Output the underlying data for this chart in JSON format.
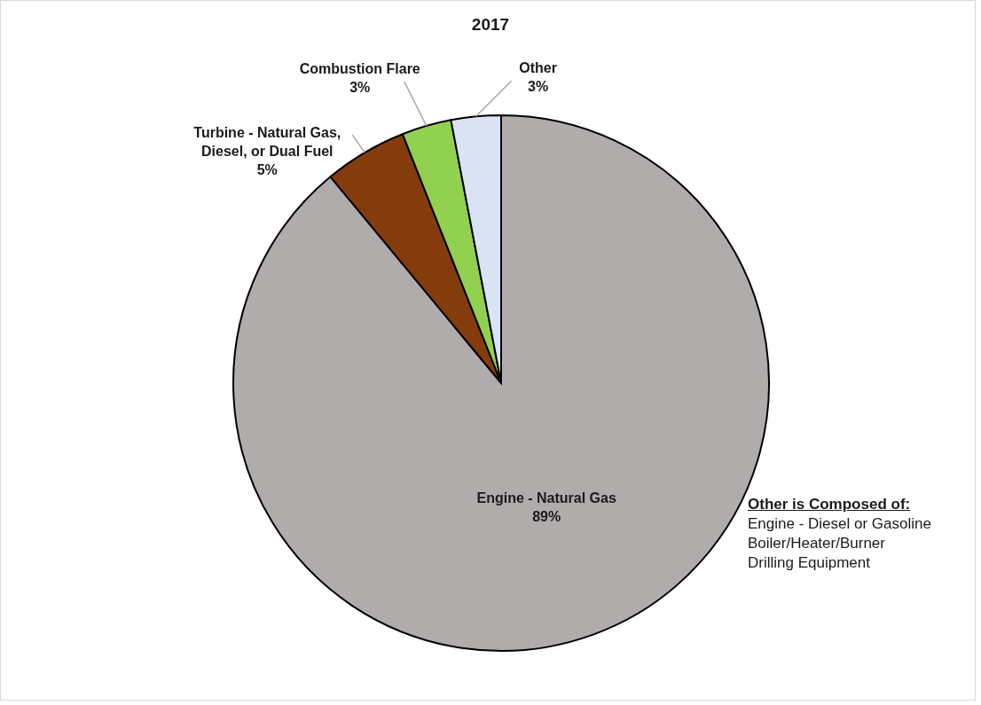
{
  "chart_data": {
    "type": "pie",
    "title": "2017",
    "categories": [
      "Engine - Natural Gas",
      "Turbine - Natural Gas, Diesel, or Dual Fuel",
      "Combustion Flare",
      "Other"
    ],
    "values": [
      89,
      5,
      3,
      3
    ],
    "colors": [
      "#b0acab",
      "#843c0c",
      "#92d050",
      "#dae3f3"
    ],
    "value_labels": [
      "89%",
      "5%",
      "3%",
      "3%"
    ],
    "annotations": [
      "Other is Composed of:",
      "Engine - Diesel or Gasoline",
      "Boiler/Heater/Burner",
      "Drilling Equipment"
    ]
  }
}
